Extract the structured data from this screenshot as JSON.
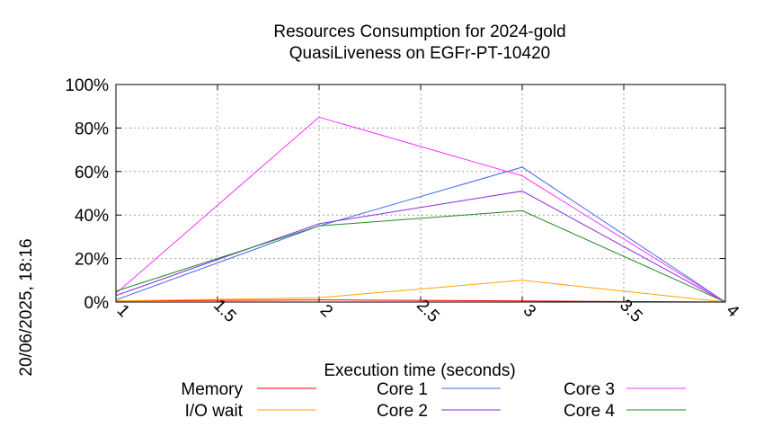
{
  "chart_data": {
    "type": "line",
    "title": [
      "Resources Consumption for 2024-gold",
      "QuasiLiveness on EGFr-PT-10420"
    ],
    "xlabel": "Execution time (seconds)",
    "ylabel": "",
    "xlim": [
      1,
      4
    ],
    "ylim": [
      0,
      100
    ],
    "x_ticks": [
      1,
      1.5,
      2,
      2.5,
      3,
      3.5,
      4
    ],
    "x_tick_labels": [
      "1",
      "1.5",
      "2",
      "2.5",
      "3",
      "3.5",
      "4"
    ],
    "y_ticks": [
      0,
      20,
      40,
      60,
      80,
      100
    ],
    "y_tick_labels": [
      "0%",
      "20%",
      "40%",
      "60%",
      "80%",
      "100%"
    ],
    "grid": true,
    "legend_position": "bottom",
    "x": [
      1,
      2,
      3,
      4
    ],
    "series": [
      {
        "name": "Memory",
        "color": "#ff0000",
        "values": [
          0.5,
          1.0,
          0.5,
          0
        ]
      },
      {
        "name": "I/O wait",
        "color": "#ffa500",
        "values": [
          0.5,
          2.0,
          10.0,
          0
        ]
      },
      {
        "name": "Core 1",
        "color": "#4169e1",
        "values": [
          1,
          35,
          62,
          0
        ]
      },
      {
        "name": "Core 2",
        "color": "#8a2be2",
        "values": [
          3,
          36,
          51,
          0
        ]
      },
      {
        "name": "Core 3",
        "color": "#ff33ff",
        "values": [
          4,
          85,
          58,
          0
        ]
      },
      {
        "name": "Core 4",
        "color": "#228b22",
        "values": [
          5,
          35,
          42,
          0
        ]
      }
    ]
  },
  "timestamp": "20/06/2025, 18:16"
}
